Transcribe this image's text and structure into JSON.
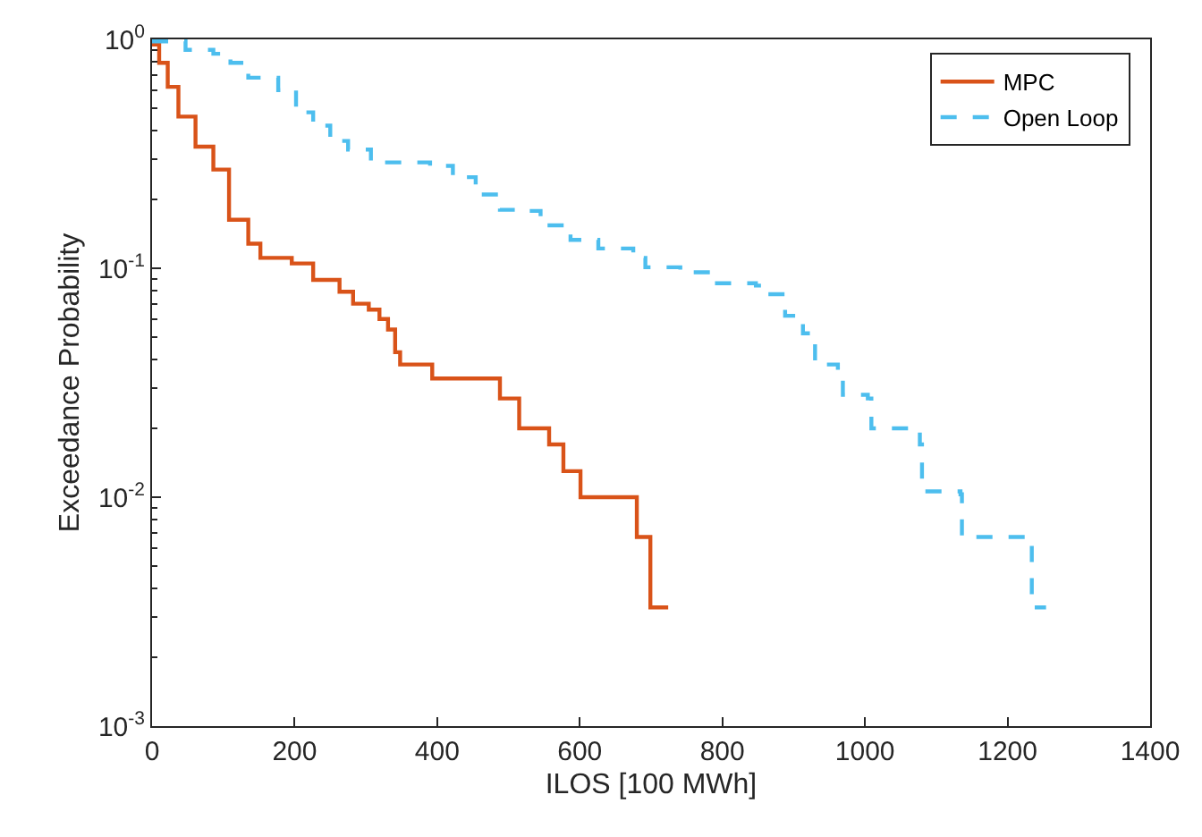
{
  "chart_data": {
    "type": "step",
    "xlabel": "ILOS [100 MWh]",
    "ylabel": "Exceedance Probability",
    "xlim": [
      0,
      1400
    ],
    "xticks": [
      0,
      200,
      400,
      600,
      800,
      1000,
      1200,
      1400
    ],
    "ylim": [
      0.001,
      1
    ],
    "yticks": [
      {
        "value": 0.001,
        "label": "10$^{-3}$"
      },
      {
        "value": 0.01,
        "label": "10$^{-2}$"
      },
      {
        "value": 0.1,
        "label": "10$^{-1}$"
      },
      {
        "value": 1,
        "label": "10$^{0}$"
      }
    ],
    "log": "y",
    "legend": "top right",
    "marker": "none",
    "series": [
      {
        "name": "MPC",
        "color": "#d95319",
        "line_style": "solid",
        "x": [
          0,
          10,
          22,
          37,
          61,
          86,
          108,
          135,
          152,
          196,
          226,
          263,
          282,
          304,
          319,
          331,
          341,
          348,
          393,
          488,
          515,
          557,
          577,
          601,
          680,
          699,
          724
        ],
        "values": [
          0.95,
          0.79,
          0.62,
          0.46,
          0.34,
          0.27,
          0.163,
          0.128,
          0.111,
          0.105,
          0.089,
          0.079,
          0.07,
          0.066,
          0.06,
          0.054,
          0.043,
          0.038,
          0.033,
          0.027,
          0.02,
          0.017,
          0.013,
          0.01,
          0.0067,
          0.0033,
          0.0033
        ]
      },
      {
        "name": "Open Loop",
        "color": "#4dbeee",
        "line_style": "dashed",
        "x": [
          0,
          47,
          86,
          110,
          135,
          177,
          202,
          226,
          250,
          275,
          307,
          390,
          422,
          454,
          488,
          513,
          545,
          587,
          626,
          675,
          692,
          741,
          783,
          847,
          864,
          888,
          913,
          930,
          962,
          969,
          1004,
          1009,
          1036,
          1077,
          1080,
          1134,
          1136,
          1232,
          1234,
          1254
        ],
        "values": [
          0.98,
          0.9,
          0.865,
          0.79,
          0.68,
          0.6,
          0.48,
          0.42,
          0.36,
          0.33,
          0.29,
          0.28,
          0.25,
          0.21,
          0.18,
          0.178,
          0.154,
          0.133,
          0.122,
          0.111,
          0.101,
          0.096,
          0.086,
          0.084,
          0.077,
          0.062,
          0.052,
          0.038,
          0.034,
          0.028,
          0.027,
          0.02,
          0.02,
          0.017,
          0.0106,
          0.0103,
          0.0067,
          0.0067,
          0.0033,
          0.0033
        ]
      }
    ]
  }
}
